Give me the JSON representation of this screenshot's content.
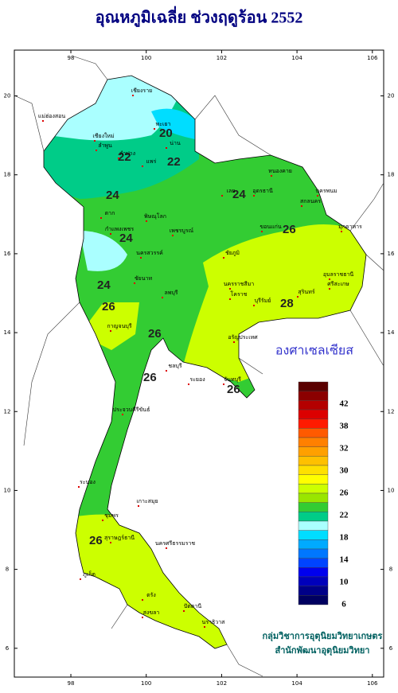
{
  "title": "อุณหภูมิเฉลี่ย ช่วงฤดูร้อน 2552",
  "map": {
    "xlim": [
      96.5,
      106.3
    ],
    "ylim": [
      5.27,
      21.16
    ],
    "lon_ticks": [
      98,
      100,
      102,
      104,
      106
    ],
    "lat_ticks": [
      6,
      8,
      10,
      12,
      14,
      16,
      18,
      20
    ]
  },
  "contour_labels": [
    20,
    22,
    22,
    24,
    24,
    24,
    24,
    26,
    26,
    26,
    26,
    26,
    28,
    26
  ],
  "places": [
    "เชียงราย",
    "แม่ฮ่องสอน",
    "เชียงใหม่",
    "ลำพูน",
    "พะเยา",
    "น่าน",
    "ลำปาง",
    "แพร่",
    "หนองคาย",
    "อุดรธานี",
    "นครพนม",
    "สกลนคร",
    "ตาก",
    "เลย",
    "มุกดาหาร",
    "ขอนแก่น",
    "พิษณุโลก",
    "กำแพงเพชร",
    "เพชรบูรณ์",
    "นครสวรรค์",
    "ชัยภูมิ",
    "อุบลราชธานี",
    "ชัยนาท",
    "ลพบุรี",
    "นครราชสีมา",
    "โคราช",
    "สุรินทร์",
    "บุรีรัมย์",
    "ศรีสะเกษ",
    "กาญจนบุรี",
    "อรัญประเทศ",
    "ชลบุรี",
    "ระยอง",
    "จันทบุรี",
    "ประจวบคีรีขันธ์",
    "ระนอง",
    "ชุมพร",
    "เกาะสมุย",
    "สุราษฎร์ธานี",
    "นครศรีธรรมราช",
    "ภูเก็ต",
    "ตรัง",
    "สงขลา",
    "ปัตตานี",
    "นราธิวาส"
  ],
  "legend": {
    "title": "องศาเซลเซียส",
    "colors": [
      "#5a0000",
      "#8b0000",
      "#b40000",
      "#dc0000",
      "#ff1a00",
      "#ff5a00",
      "#ff8000",
      "#ffa000",
      "#ffc000",
      "#ffe000",
      "#ffff00",
      "#ccff00",
      "#99e600",
      "#33cc33",
      "#00cc88",
      "#aaffff",
      "#00ddff",
      "#00aaff",
      "#0077ff",
      "#0044ff",
      "#0000ee",
      "#0000bb",
      "#000088",
      "#000060"
    ],
    "labels": [
      42,
      38,
      32,
      30,
      26,
      22,
      18,
      14,
      10,
      6
    ]
  },
  "credits": [
    "กลุ่มวิชาการอุตุนิยมวิทยาเกษตร",
    "สำนักพัฒนาอุตุนิยมวิทยา"
  ]
}
